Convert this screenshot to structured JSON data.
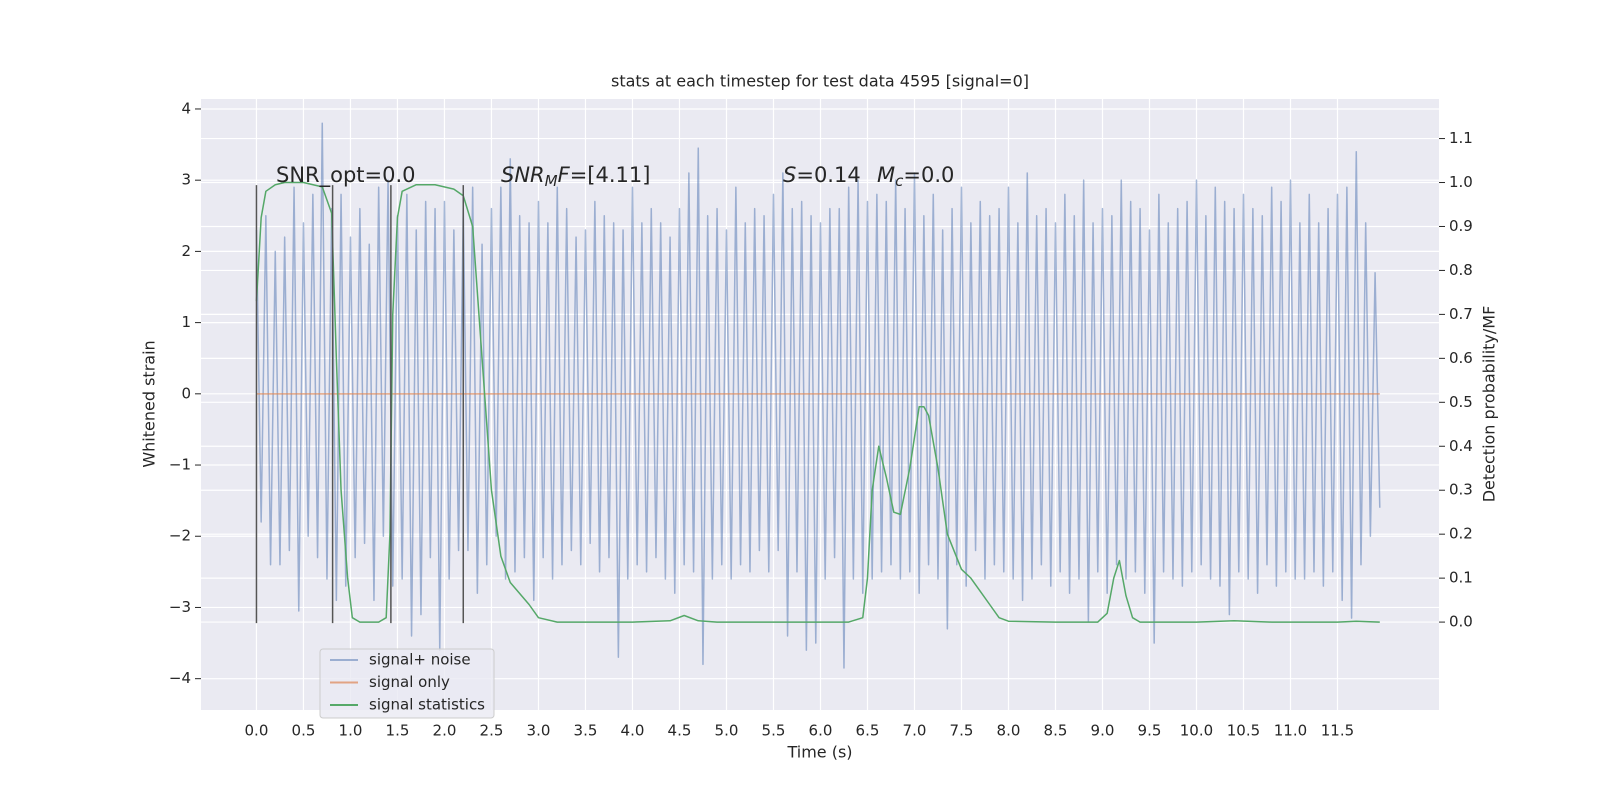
{
  "chart_data": {
    "type": "line",
    "title": "stats at each timestep for test data 4595 [signal=0]",
    "xlabel": "Time (s)",
    "ylabel": "Whitened strain",
    "y2label": "Detection probability/MF",
    "xlim": [
      -0.59,
      12.58
    ],
    "ylim": [
      -4.44,
      4.14
    ],
    "y2lim": [
      -0.2,
      1.19
    ],
    "grid": true,
    "background": "#eaeaf2",
    "xticks": [
      {
        "value": 0,
        "label": "0.0"
      },
      0.5,
      {
        "value": 1,
        "label": "1.0"
      },
      1.5,
      {
        "value": 2,
        "label": "2.0"
      },
      2.5,
      {
        "value": 3,
        "label": "3.0"
      },
      3.5,
      {
        "value": 4,
        "label": "4.0"
      },
      4.5,
      {
        "value": 5,
        "label": "5.0"
      },
      5.5,
      {
        "value": 6,
        "label": "6.0"
      },
      6.5,
      {
        "value": 7,
        "label": "7.0"
      },
      7.5,
      {
        "value": 8,
        "label": "8.0"
      },
      8.5,
      {
        "value": 9,
        "label": "9.0"
      },
      9.5,
      {
        "value": 10,
        "label": "10.0"
      },
      10.5,
      {
        "value": 11,
        "label": "11.0"
      },
      11.5
    ],
    "yticks": [
      {
        "value": -4,
        "label": "−4"
      },
      {
        "value": -3,
        "label": "−3"
      },
      {
        "value": -2,
        "label": "−2"
      },
      {
        "value": -1,
        "label": "−1"
      },
      0,
      1,
      2,
      3,
      4
    ],
    "y2ticks": [
      {
        "value": 0,
        "label": "0.0"
      },
      0.1,
      0.2,
      0.3,
      0.4,
      0.5,
      0.6,
      0.7,
      0.8,
      0.9,
      {
        "value": 1,
        "label": "1.0"
      },
      1.1
    ],
    "annotations": [
      [
        {
          "text": "SNR_opt=0.0"
        }
      ],
      [
        {
          "text": "SNR",
          "italic": true
        },
        {
          "text": "M",
          "italic": true,
          "sub": true
        },
        {
          "text": "F",
          "italic": true
        },
        {
          "text": "=[4.11]"
        }
      ],
      [
        {
          "text": "S",
          "italic": true
        },
        {
          "text": "=0.14"
        }
      ],
      [
        {
          "text": "M",
          "italic": true
        },
        {
          "text": "c",
          "italic": true,
          "sub": true
        },
        {
          "text": "=0.0"
        }
      ]
    ],
    "vlines": {
      "x": [
        0,
        0.81,
        1.43,
        2.2
      ],
      "ymin": -3.22,
      "ymax": 2.93,
      "color": "#555555"
    },
    "series": [
      {
        "name": "signal+ noise",
        "color": "#4c72b0",
        "opacity": 0.5,
        "axis": "y",
        "x": [
          0,
          0.05,
          0.1,
          0.15,
          0.2,
          0.25,
          0.3,
          0.35,
          0.4,
          0.45,
          0.5,
          0.55,
          0.6,
          0.65,
          0.7,
          0.75,
          0.8,
          0.85,
          0.9,
          0.95,
          1,
          1.05,
          1.1,
          1.15,
          1.2,
          1.25,
          1.3,
          1.35,
          1.4,
          1.45,
          1.5,
          1.55,
          1.6,
          1.65,
          1.7,
          1.75,
          1.8,
          1.85,
          1.9,
          1.95,
          2,
          2.05,
          2.1,
          2.15,
          2.2,
          2.25,
          2.3,
          2.35,
          2.4,
          2.45,
          2.5,
          2.55,
          2.6,
          2.65,
          2.7,
          2.75,
          2.8,
          2.85,
          2.9,
          2.95,
          3,
          3.05,
          3.1,
          3.15,
          3.2,
          3.25,
          3.3,
          3.35,
          3.4,
          3.45,
          3.5,
          3.55,
          3.6,
          3.65,
          3.7,
          3.75,
          3.8,
          3.85,
          3.9,
          3.95,
          4,
          4.05,
          4.1,
          4.15,
          4.2,
          4.25,
          4.3,
          4.35,
          4.4,
          4.45,
          4.5,
          4.55,
          4.6,
          4.65,
          4.7,
          4.75,
          4.8,
          4.85,
          4.9,
          4.95,
          5,
          5.05,
          5.1,
          5.15,
          5.2,
          5.25,
          5.3,
          5.35,
          5.4,
          5.45,
          5.5,
          5.55,
          5.6,
          5.65,
          5.7,
          5.75,
          5.8,
          5.85,
          5.9,
          5.95,
          6,
          6.05,
          6.1,
          6.15,
          6.2,
          6.25,
          6.3,
          6.35,
          6.4,
          6.45,
          6.5,
          6.55,
          6.6,
          6.65,
          6.7,
          6.75,
          6.8,
          6.85,
          6.9,
          6.95,
          7,
          7.05,
          7.1,
          7.15,
          7.2,
          7.25,
          7.3,
          7.35,
          7.4,
          7.45,
          7.5,
          7.55,
          7.6,
          7.65,
          7.7,
          7.75,
          7.8,
          7.85,
          7.9,
          7.95,
          8,
          8.05,
          8.1,
          8.15,
          8.2,
          8.25,
          8.3,
          8.35,
          8.4,
          8.45,
          8.5,
          8.55,
          8.6,
          8.65,
          8.7,
          8.75,
          8.8,
          8.85,
          8.9,
          8.95,
          9,
          9.05,
          9.1,
          9.15,
          9.2,
          9.25,
          9.3,
          9.35,
          9.4,
          9.45,
          9.5,
          9.55,
          9.6,
          9.65,
          9.7,
          9.75,
          9.8,
          9.85,
          9.9,
          9.95,
          10,
          10.05,
          10.1,
          10.15,
          10.2,
          10.25,
          10.3,
          10.35,
          10.4,
          10.45,
          10.5,
          10.55,
          10.6,
          10.65,
          10.7,
          10.75,
          10.8,
          10.85,
          10.9,
          10.95,
          11,
          11.05,
          11.1,
          11.15,
          11.2,
          11.25,
          11.3,
          11.35,
          11.4,
          11.45,
          11.5,
          11.55,
          11.6,
          11.65,
          11.7,
          11.75,
          11.8,
          11.85,
          11.9,
          11.95
        ],
        "values": [
          2.3,
          -1.8,
          2.5,
          -2.4,
          2.0,
          -2.4,
          2.2,
          -2.2,
          2.9,
          -3.05,
          2.4,
          -2.0,
          2.8,
          -2.3,
          3.8,
          -2.6,
          2.6,
          -2.9,
          2.8,
          -2.7,
          2.2,
          -2.3,
          2.6,
          -2.1,
          2.1,
          -2.9,
          2.9,
          -2.0,
          3.0,
          -2.7,
          2.5,
          -2.6,
          2.8,
          -3.4,
          2.3,
          -3.1,
          2.7,
          -2.3,
          2.6,
          -3.6,
          2.7,
          -2.6,
          2.3,
          -2.2,
          2.6,
          -2.2,
          2.9,
          -2.8,
          2.1,
          -2.4,
          2.6,
          -2.0,
          2.9,
          -2.6,
          3.3,
          -2.5,
          2.5,
          -2.3,
          2.4,
          -2.9,
          2.7,
          -2.3,
          2.4,
          -2.6,
          2.9,
          -2.4,
          2.6,
          -2.2,
          2.2,
          -2.4,
          2.3,
          -2.1,
          2.7,
          -2.5,
          2.5,
          -2.3,
          2.4,
          -3.7,
          2.3,
          -2.6,
          2.9,
          -2.4,
          2.4,
          -2.5,
          2.6,
          -2.3,
          2.4,
          -2.6,
          2.2,
          -2.8,
          2.6,
          -2.4,
          3.1,
          -2.5,
          3.45,
          -3.8,
          2.5,
          -2.6,
          2.6,
          -2.4,
          2.3,
          -2.6,
          2.9,
          -2.4,
          2.4,
          -2.5,
          2.6,
          -2.2,
          2.5,
          -2.5,
          2.8,
          -2.2,
          3.1,
          -3.4,
          2.6,
          -2.5,
          2.7,
          -3.6,
          2.5,
          -3.5,
          2.4,
          -2.6,
          2.6,
          -2.3,
          2.6,
          -3.85,
          2.9,
          -2.6,
          3.0,
          -2.8,
          2.7,
          -2.6,
          2.8,
          -2.5,
          2.7,
          -2.4,
          3.0,
          -2.6,
          2.6,
          -2.5,
          3.1,
          -2.8,
          2.5,
          -2.4,
          2.8,
          -2.6,
          2.3,
          -3.3,
          2.6,
          -2.4,
          2.9,
          -2.7,
          2.4,
          -2.2,
          2.7,
          -2.6,
          2.5,
          -2.4,
          2.6,
          -2.5,
          2.9,
          -2.6,
          2.4,
          -2.9,
          3.1,
          -2.6,
          2.5,
          -2.4,
          2.6,
          -2.7,
          2.4,
          -2.5,
          2.8,
          -2.8,
          2.5,
          -2.6,
          3.0,
          -3.2,
          2.4,
          -2.5,
          2.6,
          -2.8,
          2.5,
          -2.4,
          3.0,
          -2.6,
          2.7,
          -2.5,
          2.6,
          -2.8,
          2.3,
          -3.5,
          2.8,
          -2.5,
          2.4,
          -2.6,
          2.6,
          -2.7,
          2.7,
          -2.5,
          3.0,
          -2.4,
          2.5,
          -2.6,
          2.9,
          -2.7,
          2.7,
          -3.1,
          2.6,
          -2.5,
          2.8,
          -2.6,
          2.6,
          -2.8,
          2.5,
          -2.4,
          2.9,
          -2.7,
          2.7,
          -2.5,
          3.0,
          -2.6,
          2.4,
          -2.6,
          2.8,
          -2.5,
          2.4,
          -2.7,
          2.6,
          -2.5,
          2.8,
          -2.9,
          2.9,
          -3.15,
          3.4,
          -2.4,
          2.4,
          -2.0,
          1.7,
          -1.6
        ]
      },
      {
        "name": "signal only",
        "color": "#dd8452",
        "opacity": 0.7,
        "axis": "y",
        "x": [
          0,
          11.95
        ],
        "values": [
          0,
          0
        ]
      },
      {
        "name": "signal statistics",
        "color": "#55a868",
        "opacity": 1,
        "axis": "y2",
        "x": [
          0,
          0.05,
          0.1,
          0.2,
          0.3,
          0.5,
          0.7,
          0.8,
          0.85,
          0.9,
          0.97,
          1.02,
          1.1,
          1.3,
          1.38,
          1.42,
          1.45,
          1.5,
          1.55,
          1.7,
          1.9,
          2.1,
          2.2,
          2.3,
          2.4,
          2.5,
          2.6,
          2.7,
          2.9,
          3.0,
          3.2,
          4.0,
          4.4,
          4.55,
          4.7,
          4.9,
          6.3,
          6.45,
          6.5,
          6.55,
          6.62,
          6.7,
          6.78,
          6.85,
          6.95,
          7.05,
          7.1,
          7.15,
          7.25,
          7.35,
          7.5,
          7.6,
          7.7,
          7.8,
          7.9,
          8.0,
          8.5,
          8.95,
          9.05,
          9.12,
          9.18,
          9.25,
          9.32,
          9.4,
          10.0,
          10.4,
          10.8,
          11.5,
          11.7,
          11.95
        ],
        "values": [
          0.73,
          0.92,
          0.98,
          0.995,
          1.0,
          1.0,
          0.99,
          0.93,
          0.6,
          0.3,
          0.1,
          0.01,
          0.0,
          0.0,
          0.01,
          0.2,
          0.7,
          0.92,
          0.98,
          0.995,
          0.995,
          0.985,
          0.97,
          0.9,
          0.6,
          0.3,
          0.15,
          0.09,
          0.04,
          0.01,
          0.0,
          0.0,
          0.003,
          0.015,
          0.003,
          0.0,
          0.0,
          0.01,
          0.1,
          0.3,
          0.4,
          0.33,
          0.25,
          0.245,
          0.35,
          0.49,
          0.49,
          0.47,
          0.35,
          0.2,
          0.12,
          0.1,
          0.07,
          0.04,
          0.01,
          0.002,
          0.0,
          0.0,
          0.02,
          0.1,
          0.14,
          0.06,
          0.01,
          0.0,
          0.0,
          0.003,
          0.0,
          0.0,
          0.002,
          0.0
        ]
      }
    ]
  }
}
